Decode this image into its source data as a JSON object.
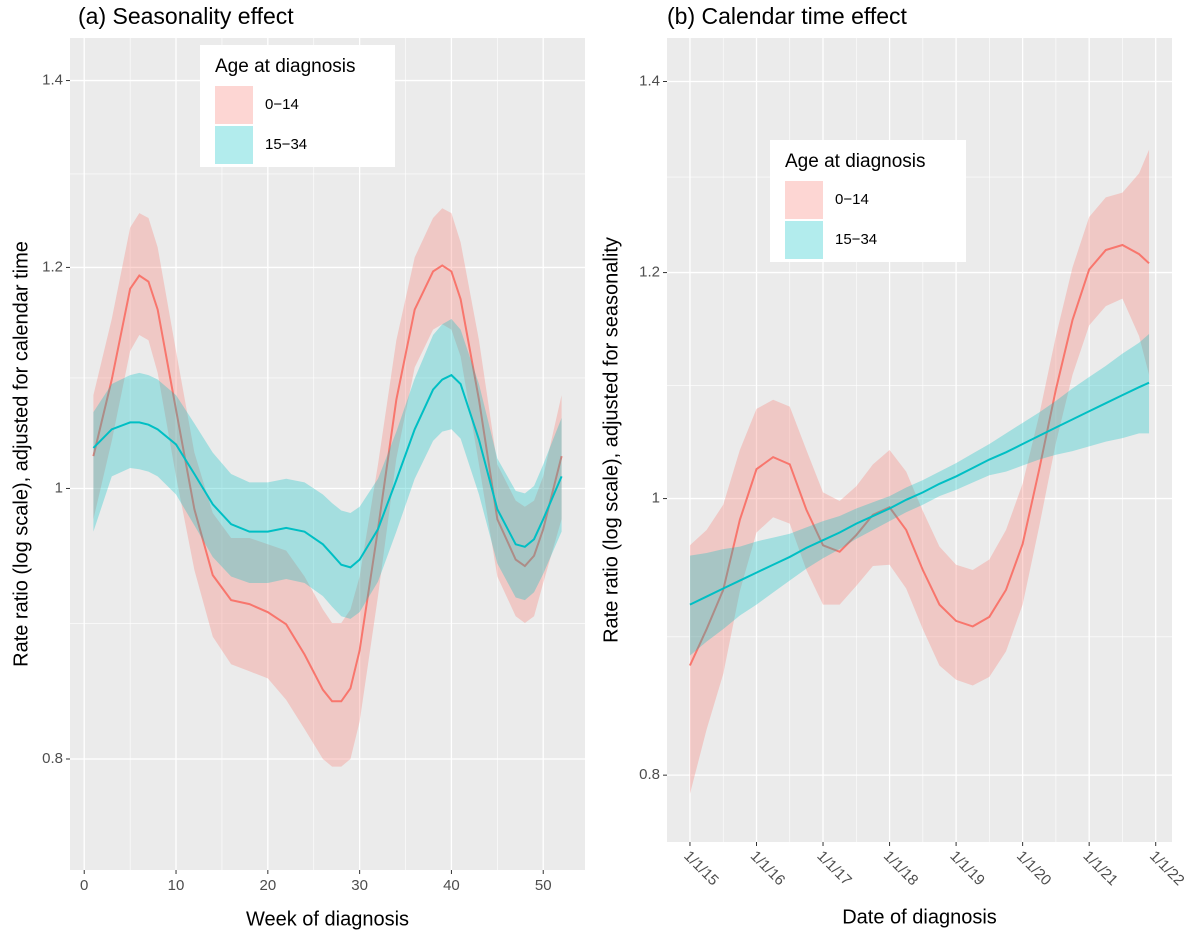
{
  "chart_data": [
    {
      "type": "line",
      "title": "(a) Seasonality effect",
      "xlabel": "Week of diagnosis",
      "ylabel": "Rate ratio (log scale), adjusted for calendar time",
      "log_y": true,
      "grid": true,
      "legend_title": "Age at diagnosis",
      "legend_position": "inside",
      "xlim": [
        -1.55,
        54.55
      ],
      "xticks": [
        0,
        10,
        20,
        30,
        40,
        50
      ],
      "ylim": [
        0.73,
        1.45
      ],
      "yticks": [
        0.8,
        1,
        1.2,
        1.4
      ],
      "x": [
        1,
        3,
        5,
        6,
        7,
        8,
        10,
        12,
        14,
        16,
        18,
        20,
        22,
        24,
        26,
        27,
        28,
        29,
        30,
        32,
        34,
        36,
        38,
        39,
        40,
        41,
        43,
        45,
        47,
        48,
        49,
        50,
        52
      ],
      "series": [
        {
          "name": "0−14",
          "color": "#F8766D",
          "values": [
            1.027,
            1.094,
            1.179,
            1.192,
            1.186,
            1.159,
            1.067,
            0.983,
            0.931,
            0.912,
            0.909,
            0.903,
            0.894,
            0.872,
            0.847,
            0.839,
            0.839,
            0.848,
            0.875,
            0.967,
            1.076,
            1.159,
            1.196,
            1.202,
            1.196,
            1.169,
            1.076,
            0.975,
            0.943,
            0.938,
            0.946,
            0.967,
            1.027
          ],
          "upper": [
            1.08,
            1.15,
            1.24,
            1.255,
            1.25,
            1.22,
            1.12,
            1.03,
            0.98,
            0.96,
            0.96,
            0.955,
            0.95,
            0.93,
            0.905,
            0.895,
            0.895,
            0.905,
            0.93,
            1.02,
            1.13,
            1.21,
            1.25,
            1.26,
            1.255,
            1.225,
            1.13,
            1.02,
            0.99,
            0.985,
            0.99,
            1.01,
            1.08
          ],
          "lower": [
            0.975,
            1.04,
            1.12,
            1.135,
            1.13,
            1.1,
            1.01,
            0.935,
            0.885,
            0.865,
            0.86,
            0.855,
            0.84,
            0.82,
            0.8,
            0.795,
            0.795,
            0.8,
            0.825,
            0.915,
            1.025,
            1.105,
            1.14,
            1.145,
            1.14,
            1.115,
            1.02,
            0.93,
            0.9,
            0.895,
            0.9,
            0.925,
            0.975
          ]
        },
        {
          "name": "15−34",
          "color": "#00BFC4",
          "values": [
            1.034,
            1.05,
            1.056,
            1.056,
            1.054,
            1.05,
            1.037,
            1.012,
            0.987,
            0.971,
            0.965,
            0.965,
            0.968,
            0.965,
            0.955,
            0.947,
            0.939,
            0.937,
            0.943,
            0.967,
            1.007,
            1.05,
            1.085,
            1.094,
            1.098,
            1.09,
            1.041,
            0.983,
            0.955,
            0.953,
            0.959,
            0.975,
            1.01
          ],
          "upper": [
            1.065,
            1.09,
            1.098,
            1.1,
            1.098,
            1.094,
            1.08,
            1.055,
            1.03,
            1.012,
            1.005,
            1.005,
            1.008,
            1.005,
            0.995,
            0.988,
            0.982,
            0.98,
            0.985,
            1.008,
            1.048,
            1.095,
            1.135,
            1.145,
            1.15,
            1.14,
            1.09,
            1.025,
            0.998,
            0.996,
            1.002,
            1.02,
            1.06
          ],
          "lower": [
            0.965,
            1.01,
            1.017,
            1.016,
            1.014,
            1.01,
            0.995,
            0.97,
            0.945,
            0.93,
            0.925,
            0.925,
            0.928,
            0.925,
            0.915,
            0.907,
            0.9,
            0.898,
            0.903,
            0.926,
            0.965,
            1.008,
            1.04,
            1.048,
            1.05,
            1.042,
            0.995,
            0.94,
            0.914,
            0.912,
            0.918,
            0.932,
            0.965
          ]
        }
      ]
    },
    {
      "type": "line",
      "title": "(b) Calendar time effect",
      "xlabel": "Date of diagnosis",
      "ylabel": "Rate ratio (log scale), adjusted for seasonality",
      "log_y": true,
      "grid": true,
      "legend_title": "Age at diagnosis",
      "legend_position": "inside",
      "xlim": [
        2014.655,
        2022.245
      ],
      "xticks": [
        {
          "value": 2015,
          "label": "1/1/15"
        },
        {
          "value": 2016,
          "label": "1/1/16"
        },
        {
          "value": 2017,
          "label": "1/1/17"
        },
        {
          "value": 2018,
          "label": "1/1/18"
        },
        {
          "value": 2019,
          "label": "1/1/19"
        },
        {
          "value": 2020,
          "label": "1/1/20"
        },
        {
          "value": 2021,
          "label": "1/1/21"
        },
        {
          "value": 2022,
          "label": "1/1/22"
        }
      ],
      "ylim": [
        0.758,
        1.45
      ],
      "yticks": [
        0.8,
        1,
        1.2,
        1.4
      ],
      "x": [
        2015,
        2015.25,
        2015.5,
        2015.75,
        2016,
        2016.25,
        2016.5,
        2016.75,
        2017,
        2017.25,
        2017.5,
        2017.75,
        2018,
        2018.25,
        2018.5,
        2018.75,
        2019,
        2019.25,
        2019.5,
        2019.75,
        2020,
        2020.25,
        2020.5,
        2020.75,
        2021,
        2021.25,
        2021.5,
        2021.75,
        2021.9
      ],
      "series": [
        {
          "name": "0−14",
          "color": "#F8766D",
          "values": [
            0.874,
            0.9,
            0.929,
            0.983,
            1.024,
            1.034,
            1.028,
            0.991,
            0.963,
            0.958,
            0.971,
            0.987,
            0.993,
            0.975,
            0.944,
            0.918,
            0.906,
            0.902,
            0.909,
            0.929,
            0.964,
            1.024,
            1.092,
            1.155,
            1.203,
            1.222,
            1.227,
            1.218,
            1.209
          ],
          "upper": [
            0.963,
            0.975,
            0.995,
            1.04,
            1.075,
            1.083,
            1.077,
            1.04,
            1.005,
            0.998,
            1.01,
            1.028,
            1.04,
            1.022,
            0.99,
            0.962,
            0.948,
            0.944,
            0.952,
            0.975,
            1.012,
            1.07,
            1.14,
            1.205,
            1.255,
            1.275,
            1.28,
            1.3,
            1.325
          ],
          "lower": [
            0.788,
            0.83,
            0.868,
            0.928,
            0.973,
            0.985,
            0.98,
            0.944,
            0.918,
            0.918,
            0.932,
            0.947,
            0.948,
            0.93,
            0.9,
            0.874,
            0.864,
            0.86,
            0.866,
            0.884,
            0.918,
            0.978,
            1.046,
            1.105,
            1.15,
            1.168,
            1.175,
            1.14,
            1.105
          ]
        },
        {
          "name": "15−34",
          "color": "#00BFC4",
          "values": [
            0.918,
            0.924,
            0.93,
            0.936,
            0.942,
            0.948,
            0.954,
            0.961,
            0.967,
            0.973,
            0.98,
            0.986,
            0.992,
            0.999,
            1.005,
            1.012,
            1.018,
            1.025,
            1.032,
            1.038,
            1.045,
            1.052,
            1.059,
            1.066,
            1.073,
            1.08,
            1.087,
            1.094,
            1.098
          ],
          "upper": [
            0.955,
            0.957,
            0.96,
            0.962,
            0.966,
            0.969,
            0.972,
            0.977,
            0.982,
            0.986,
            0.992,
            0.997,
            1.002,
            1.009,
            1.015,
            1.022,
            1.029,
            1.037,
            1.045,
            1.054,
            1.063,
            1.072,
            1.082,
            1.093,
            1.103,
            1.113,
            1.124,
            1.134,
            1.142
          ],
          "lower": [
            0.881,
            0.891,
            0.9,
            0.91,
            0.918,
            0.927,
            0.936,
            0.945,
            0.953,
            0.96,
            0.968,
            0.975,
            0.982,
            0.989,
            0.995,
            1.002,
            1.007,
            1.013,
            1.019,
            1.022,
            1.027,
            1.032,
            1.036,
            1.039,
            1.043,
            1.047,
            1.05,
            1.054,
            1.054
          ]
        }
      ]
    }
  ]
}
